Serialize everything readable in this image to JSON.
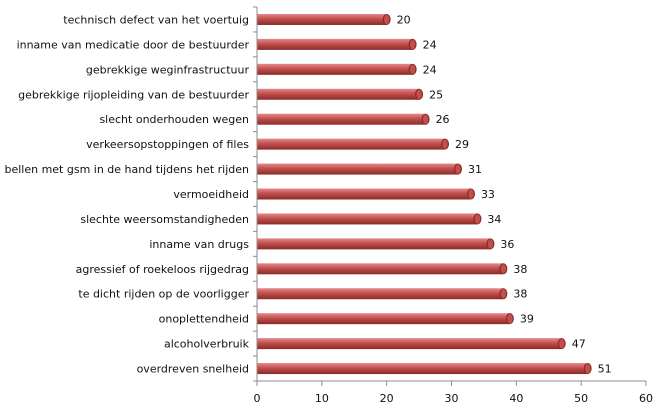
{
  "chart_data": {
    "type": "bar",
    "orientation": "horizontal",
    "title": "",
    "xlabel": "",
    "ylabel": "",
    "categories": [
      "technisch defect van het voertuig",
      "inname van medicatie door de bestuurder",
      "gebrekkige weginfrastructuur",
      "gebrekkige rijopleiding van de bestuurder",
      "slecht onderhouden wegen",
      "verkeersopstoppingen of files",
      "bellen met gsm in de hand tijdens het rijden",
      "vermoeidheid",
      "slechte weersomstandigheden",
      "inname van drugs",
      "agressief of roekeloos rijgedrag",
      "te dicht rijden op de voorligger",
      "onoplettendheid",
      "alcoholverbruik",
      "overdreven snelheid"
    ],
    "values": [
      20,
      24,
      24,
      25,
      26,
      29,
      31,
      33,
      34,
      36,
      38,
      38,
      39,
      47,
      51
    ],
    "xlim": [
      0,
      60
    ],
    "xticks": [
      0,
      10,
      20,
      30,
      40,
      50,
      60
    ],
    "grid": false,
    "legend": "none",
    "colors": {
      "bar_light": "#e8898b",
      "bar_main": "#c0504d",
      "bar_dark": "#8c2a28",
      "axis": "#8c8c8c"
    }
  }
}
